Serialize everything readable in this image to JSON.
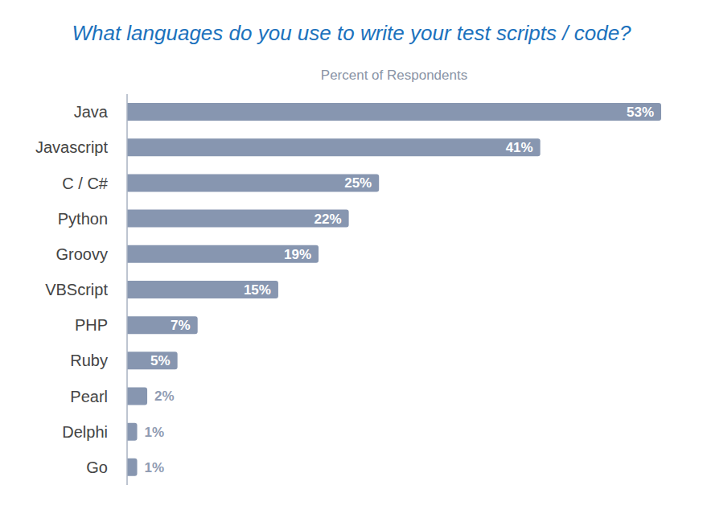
{
  "chart_data": {
    "type": "bar",
    "orientation": "horizontal",
    "title": "What languages do you use to write your test scripts / code?",
    "subtitle": "Percent of Respondents",
    "categories": [
      "Java",
      "Javascript",
      "C / C#",
      "Python",
      "Groovy",
      "VBScript",
      "PHP",
      "Ruby",
      "Pearl",
      "Delphi",
      "Go"
    ],
    "values": [
      53,
      41,
      25,
      22,
      19,
      15,
      7,
      5,
      2,
      1,
      1
    ],
    "value_labels": [
      "53%",
      "41%",
      "25%",
      "22%",
      "19%",
      "15%",
      "7%",
      "5%",
      "2%",
      "1%",
      "1%"
    ],
    "color": "#8796b0",
    "xlim": [
      0,
      53
    ],
    "data_labels": true,
    "tick_labels": "y",
    "grid": false
  }
}
